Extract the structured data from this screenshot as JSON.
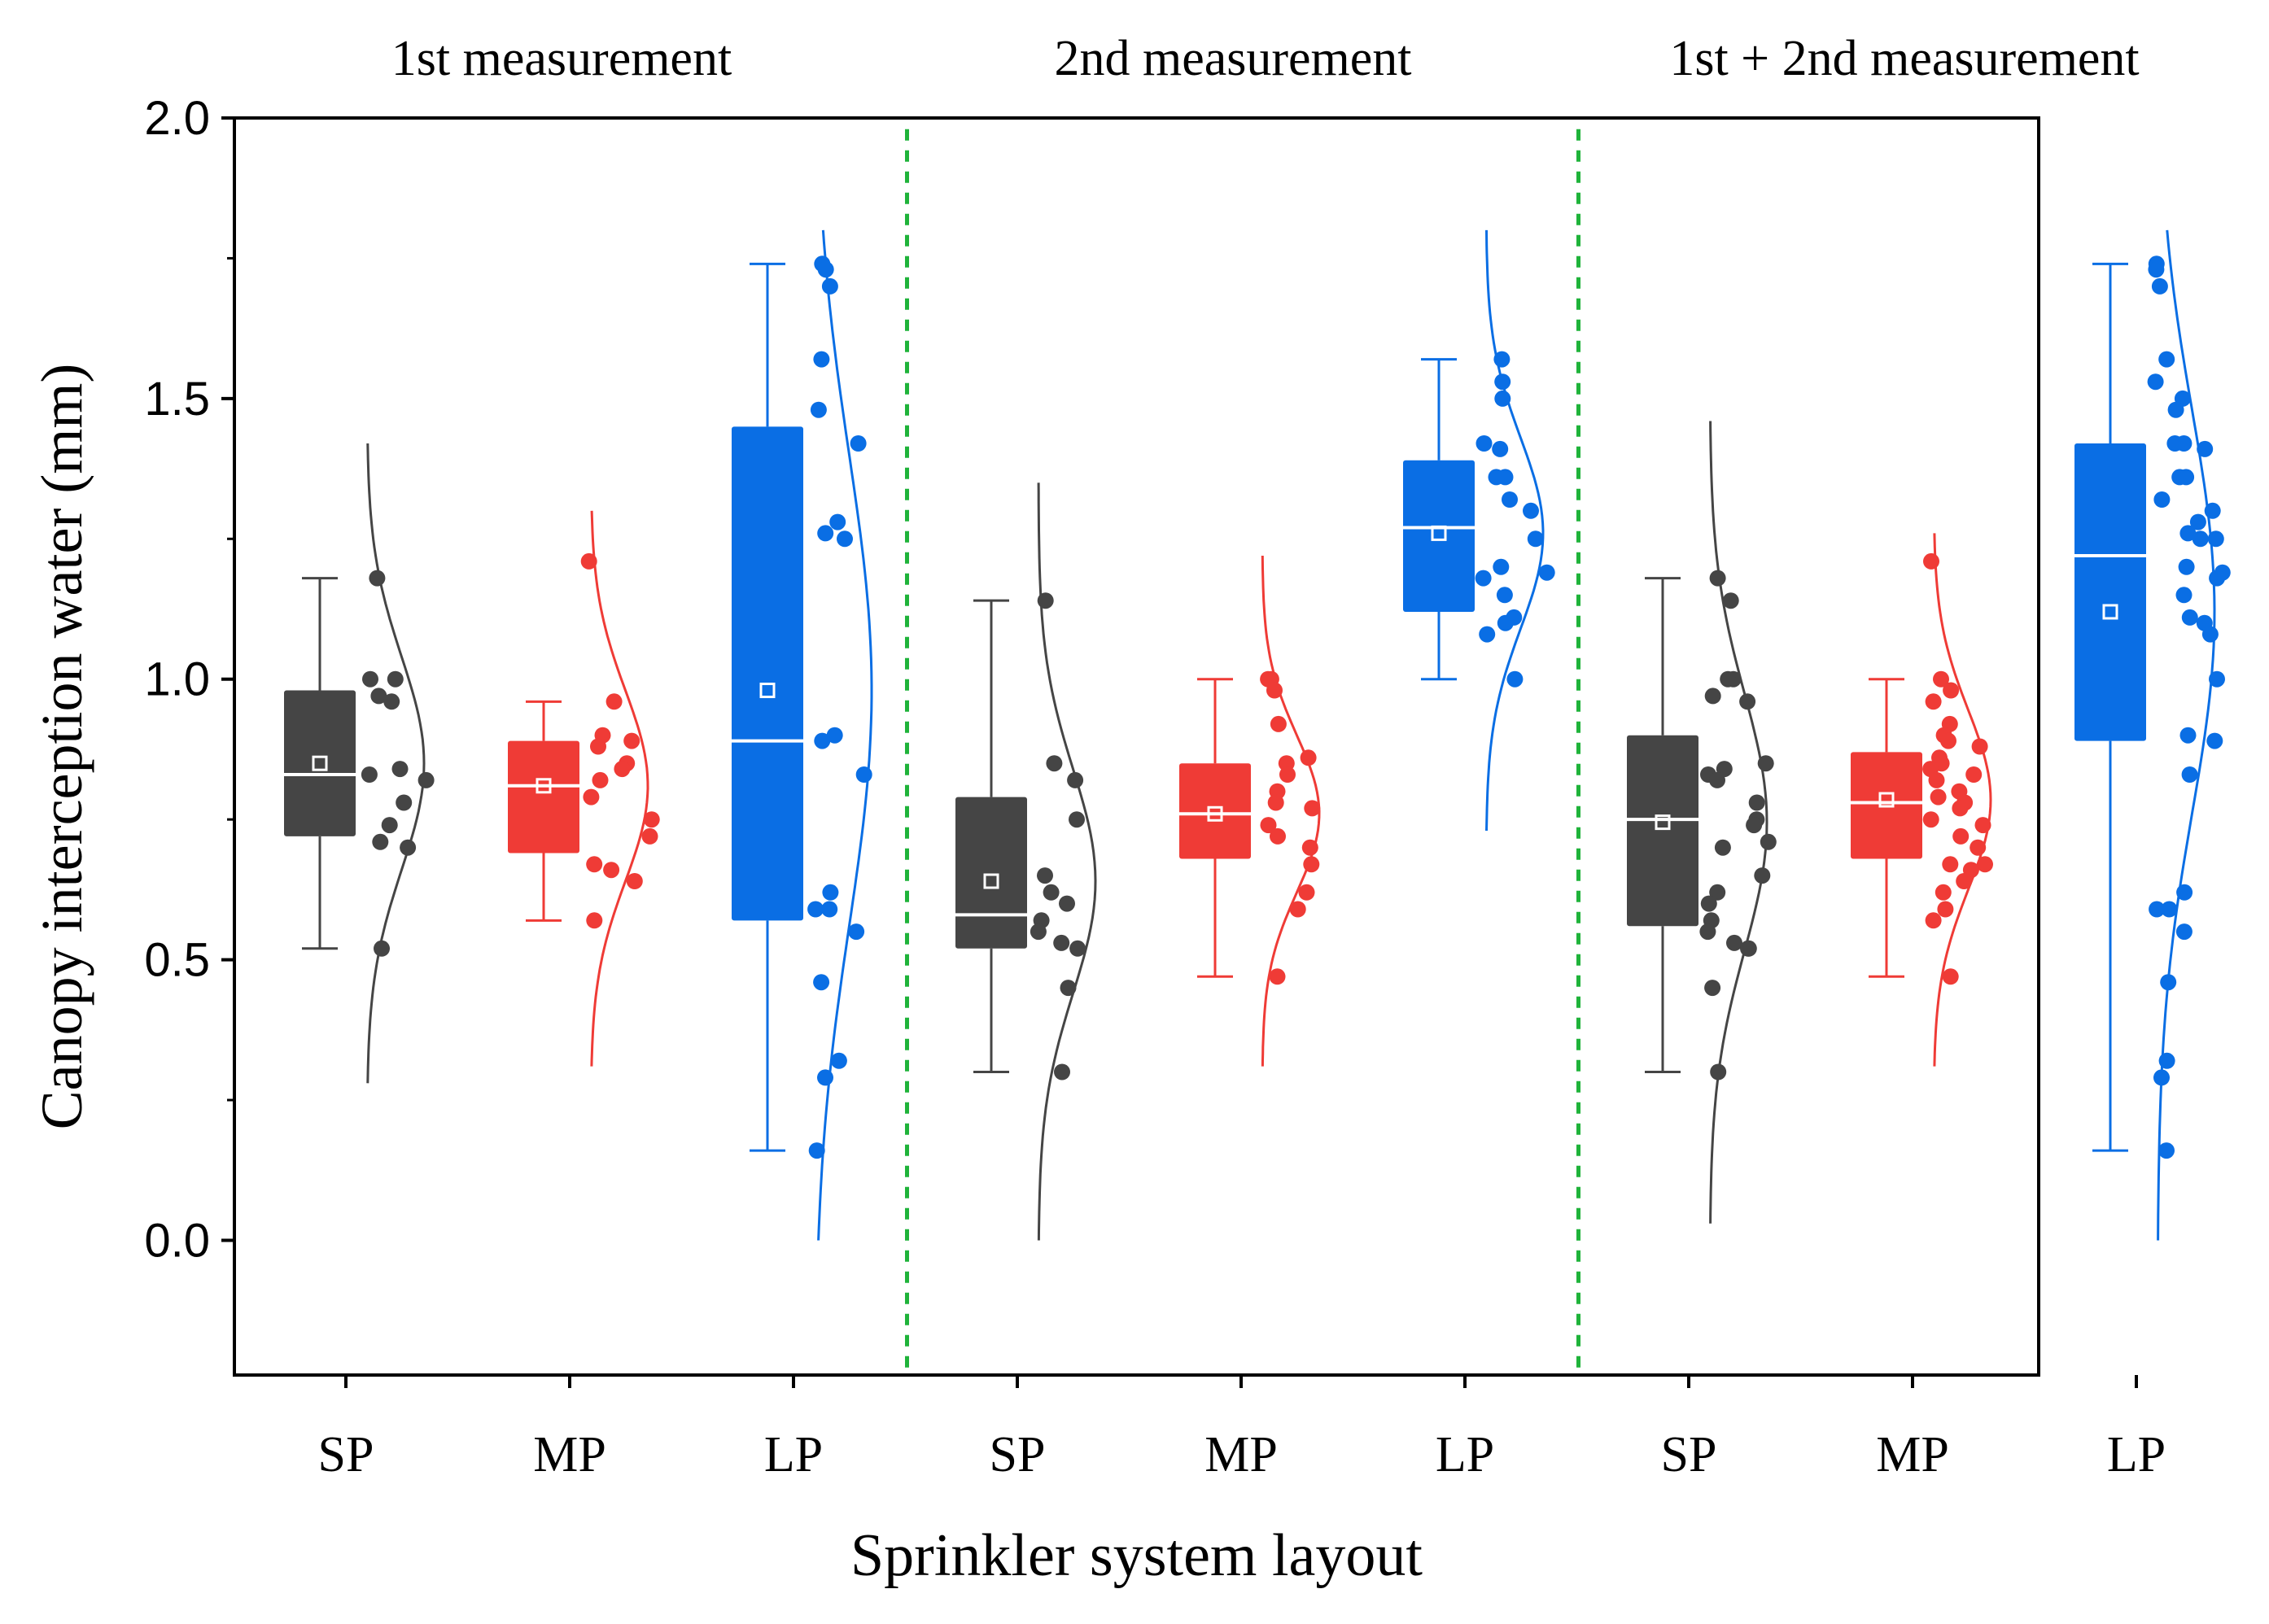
{
  "chart_data": {
    "type": "boxplot",
    "title": "",
    "xlabel": "Sprinkler system layout",
    "ylabel": "Canopy interception water (mm)",
    "ylim": [
      -0.24,
      2.0
    ],
    "yticks": [
      0.0,
      0.5,
      1.0,
      1.5,
      2.0
    ],
    "ytick_labels": [
      "0.0",
      "0.5",
      "1.0",
      "1.5",
      "2.0"
    ],
    "grid": false,
    "legend": "none",
    "colors": {
      "SP": "#454545",
      "MP": "#ef3b36",
      "LP": "#0a6ee4",
      "separator": "#1fb33a",
      "whisker": "#454545"
    },
    "groups": [
      {
        "label": "1st measurement",
        "categories": [
          {
            "name": "SP",
            "color_key": "SP",
            "whisker_low": 0.52,
            "q1": 0.72,
            "median": 0.83,
            "q3": 0.98,
            "whisker_high": 1.18,
            "mean": 0.85,
            "points": [
              1.18,
              1.0,
              1.0,
              0.97,
              0.96,
              0.84,
              0.83,
              0.82,
              0.78,
              0.74,
              0.71,
              0.7,
              0.52
            ],
            "dist": {
              "mean": 0.85,
              "sd": 0.19,
              "min": 0.28,
              "max": 1.42
            }
          },
          {
            "name": "MP",
            "color_key": "MP",
            "whisker_low": 0.57,
            "q1": 0.69,
            "median": 0.81,
            "q3": 0.89,
            "whisker_high": 0.96,
            "mean": 0.81,
            "points": [
              1.21,
              0.96,
              0.9,
              0.89,
              0.88,
              0.85,
              0.84,
              0.82,
              0.79,
              0.75,
              0.72,
              0.67,
              0.66,
              0.64,
              0.57
            ],
            "dist": {
              "mean": 0.81,
              "sd": 0.17,
              "min": 0.31,
              "max": 1.3
            }
          },
          {
            "name": "LP",
            "color_key": "LP",
            "whisker_low": 0.16,
            "q1": 0.57,
            "median": 0.89,
            "q3": 1.45,
            "whisker_high": 1.74,
            "mean": 0.98,
            "points": [
              1.74,
              1.73,
              1.7,
              1.57,
              1.48,
              1.42,
              1.28,
              1.26,
              1.25,
              0.9,
              0.89,
              0.83,
              0.62,
              0.59,
              0.59,
              0.55,
              0.46,
              0.32,
              0.29,
              0.16
            ],
            "dist": {
              "mean": 0.98,
              "sd": 0.42,
              "min": 0.0,
              "max": 1.8
            }
          }
        ]
      },
      {
        "label": "2nd measurement",
        "categories": [
          {
            "name": "SP",
            "color_key": "SP",
            "whisker_low": 0.3,
            "q1": 0.52,
            "median": 0.58,
            "q3": 0.79,
            "whisker_high": 1.14,
            "mean": 0.64,
            "points": [
              1.14,
              0.85,
              0.82,
              0.75,
              0.65,
              0.62,
              0.6,
              0.57,
              0.55,
              0.53,
              0.52,
              0.45,
              0.3
            ],
            "dist": {
              "mean": 0.64,
              "sd": 0.2,
              "min": 0.0,
              "max": 1.35
            }
          },
          {
            "name": "MP",
            "color_key": "MP",
            "whisker_low": 0.47,
            "q1": 0.68,
            "median": 0.76,
            "q3": 0.85,
            "whisker_high": 1.0,
            "mean": 0.76,
            "points": [
              1.0,
              1.0,
              0.98,
              0.92,
              0.86,
              0.85,
              0.83,
              0.8,
              0.78,
              0.77,
              0.74,
              0.72,
              0.7,
              0.67,
              0.62,
              0.59,
              0.47
            ],
            "dist": {
              "mean": 0.76,
              "sd": 0.14,
              "min": 0.31,
              "max": 1.22
            }
          },
          {
            "name": "LP",
            "color_key": "LP",
            "whisker_low": 1.0,
            "q1": 1.12,
            "median": 1.27,
            "q3": 1.39,
            "whisker_high": 1.57,
            "mean": 1.26,
            "points": [
              1.57,
              1.53,
              1.5,
              1.42,
              1.41,
              1.36,
              1.36,
              1.32,
              1.3,
              1.25,
              1.2,
              1.19,
              1.18,
              1.15,
              1.11,
              1.1,
              1.08,
              1.0
            ],
            "dist": {
              "mean": 1.26,
              "sd": 0.17,
              "min": 0.73,
              "max": 1.8
            }
          }
        ]
      },
      {
        "label": "1st + 2nd measurement",
        "categories": [
          {
            "name": "SP",
            "color_key": "SP",
            "whisker_low": 0.3,
            "q1": 0.56,
            "median": 0.75,
            "q3": 0.9,
            "whisker_high": 1.18,
            "mean": 0.745,
            "points": [
              1.18,
              1.14,
              1.0,
              1.0,
              0.97,
              0.96,
              0.85,
              0.84,
              0.83,
              0.82,
              0.78,
              0.75,
              0.74,
              0.71,
              0.7,
              0.65,
              0.62,
              0.6,
              0.57,
              0.55,
              0.53,
              0.52,
              0.52,
              0.45,
              0.3
            ],
            "dist": {
              "mean": 0.745,
              "sd": 0.23,
              "min": 0.03,
              "max": 1.46
            }
          },
          {
            "name": "MP",
            "color_key": "MP",
            "whisker_low": 0.47,
            "q1": 0.68,
            "median": 0.78,
            "q3": 0.87,
            "whisker_high": 1.0,
            "mean": 0.785,
            "points": [
              1.21,
              1.0,
              0.98,
              0.96,
              0.92,
              0.9,
              0.89,
              0.88,
              0.86,
              0.85,
              0.84,
              0.83,
              0.82,
              0.8,
              0.79,
              0.78,
              0.77,
              0.75,
              0.74,
              0.72,
              0.7,
              0.67,
              0.67,
              0.66,
              0.64,
              0.62,
              0.59,
              0.57,
              0.47
            ],
            "dist": {
              "mean": 0.785,
              "sd": 0.16,
              "min": 0.31,
              "max": 1.26
            }
          },
          {
            "name": "LP",
            "color_key": "LP",
            "whisker_low": 0.16,
            "q1": 0.89,
            "median": 1.22,
            "q3": 1.42,
            "whisker_high": 1.74,
            "mean": 1.12,
            "points": [
              1.74,
              1.73,
              1.7,
              1.57,
              1.53,
              1.5,
              1.48,
              1.42,
              1.42,
              1.41,
              1.36,
              1.36,
              1.32,
              1.3,
              1.28,
              1.26,
              1.25,
              1.25,
              1.2,
              1.19,
              1.18,
              1.15,
              1.11,
              1.1,
              1.08,
              1.0,
              0.9,
              0.89,
              0.83,
              0.62,
              0.59,
              0.59,
              0.55,
              0.46,
              0.32,
              0.29,
              0.16
            ],
            "dist": {
              "mean": 1.12,
              "sd": 0.36,
              "min": 0.0,
              "max": 1.8
            }
          }
        ]
      }
    ]
  }
}
